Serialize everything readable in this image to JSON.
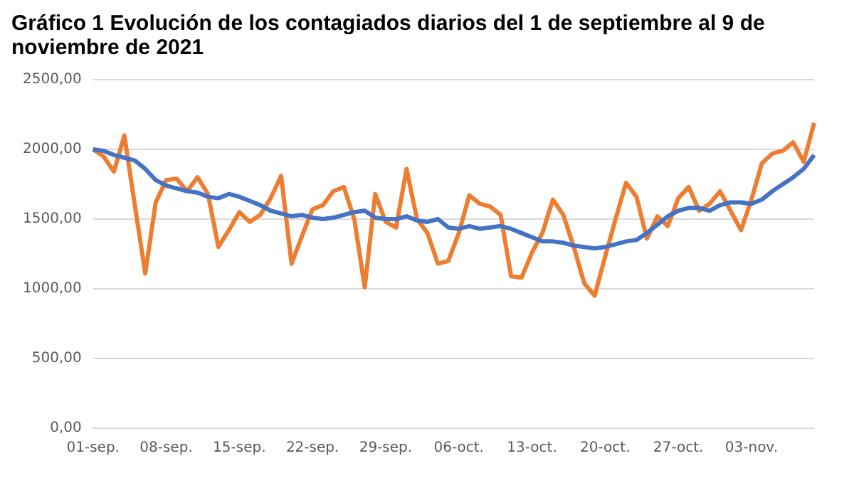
{
  "chart_data": {
    "type": "line",
    "title": "Gráfico 1 Evolución de los contagiados diarios del 1 de septiembre al 9 de noviembre de 2021",
    "categories": [
      "01-sep.",
      null,
      null,
      null,
      null,
      null,
      null,
      "08-sep.",
      null,
      null,
      null,
      null,
      null,
      null,
      "15-sep.",
      null,
      null,
      null,
      null,
      null,
      null,
      "22-sep.",
      null,
      null,
      null,
      null,
      null,
      null,
      "29-sep.",
      null,
      null,
      null,
      null,
      null,
      null,
      "06-oct.",
      null,
      null,
      null,
      null,
      null,
      null,
      "13-oct.",
      null,
      null,
      null,
      null,
      null,
      null,
      "20-oct.",
      null,
      null,
      null,
      null,
      null,
      null,
      "27-oct.",
      null,
      null,
      null,
      null,
      null,
      null,
      "03-nov.",
      null,
      null,
      null,
      null,
      null,
      null
    ],
    "series": [
      {
        "color": "#4472c4",
        "values": [
          2000,
          1990,
          1960,
          1940,
          1920,
          1860,
          1780,
          1740,
          1720,
          1700,
          1690,
          1660,
          1650,
          1680,
          1660,
          1630,
          1600,
          1560,
          1540,
          1520,
          1530,
          1510,
          1500,
          1510,
          1530,
          1550,
          1560,
          1510,
          1500,
          1500,
          1520,
          1490,
          1480,
          1500,
          1440,
          1430,
          1450,
          1430,
          1440,
          1450,
          1430,
          1400,
          1370,
          1340,
          1340,
          1330,
          1310,
          1300,
          1290,
          1300,
          1320,
          1340,
          1350,
          1400,
          1460,
          1520,
          1560,
          1580,
          1580,
          1560,
          1600,
          1620,
          1620,
          1610,
          1640,
          1700,
          1750,
          1800,
          1860,
          1960
        ]
      },
      {
        "color": "#ed7d31",
        "values": [
          2000,
          1950,
          1840,
          2100,
          1600,
          1110,
          1620,
          1780,
          1790,
          1700,
          1800,
          1680,
          1300,
          1420,
          1550,
          1480,
          1530,
          1650,
          1810,
          1180,
          1380,
          1570,
          1600,
          1700,
          1730,
          1500,
          1010,
          1680,
          1480,
          1440,
          1860,
          1500,
          1400,
          1180,
          1200,
          1400,
          1670,
          1610,
          1590,
          1530,
          1090,
          1080,
          1260,
          1400,
          1640,
          1530,
          1300,
          1040,
          950,
          1230,
          1500,
          1760,
          1660,
          1360,
          1520,
          1450,
          1650,
          1730,
          1560,
          1610,
          1700,
          1560,
          1420,
          1640,
          1900,
          1970,
          1990,
          2050,
          1910,
          2190
        ]
      }
    ],
    "ylim": [
      0,
      2500
    ],
    "yticks": [
      {
        "value": 0,
        "label": "0,00"
      },
      {
        "value": 500,
        "label": "500,00"
      },
      {
        "value": 1000,
        "label": "1000,00"
      },
      {
        "value": 1500,
        "label": "1500,00"
      },
      {
        "value": 2000,
        "label": "2000,00"
      },
      {
        "value": 2500,
        "label": "2500,00"
      }
    ],
    "grid": "y",
    "legend": false,
    "marker": "none",
    "line_style": "solid"
  }
}
